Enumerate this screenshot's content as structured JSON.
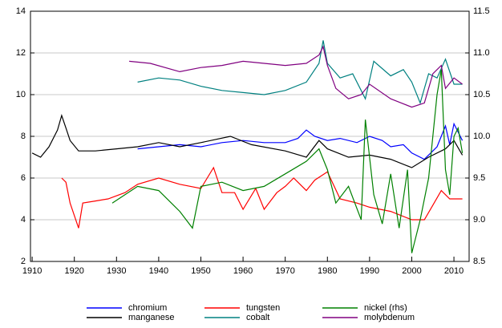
{
  "chart_data": {
    "type": "line",
    "xlim": [
      1909.6,
      2013.6
    ],
    "xticks": [
      1910,
      1920,
      1930,
      1940,
      1950,
      1960,
      1970,
      1980,
      1990,
      2000,
      2010
    ],
    "ylim": [
      2,
      14
    ],
    "yticks": [
      2,
      4,
      6,
      8,
      10,
      12,
      14
    ],
    "y2lim": [
      8.5,
      11.5
    ],
    "y2ticks": [
      8.5,
      {
        "value": 9,
        "label": "9.0"
      },
      9.5,
      {
        "value": 10,
        "label": "10.0"
      },
      10.5,
      {
        "value": 11,
        "label": "11.0"
      },
      11.5
    ],
    "grid": true,
    "legend": "bottom",
    "series": [
      {
        "name": "chromium",
        "color": "#0000ff",
        "x": [
          1935,
          1940,
          1945,
          1950,
          1955,
          1960,
          1965,
          1970,
          1973,
          1975,
          1977,
          1980,
          1983,
          1987,
          1990,
          1993,
          1995,
          1998,
          2000,
          2003,
          2006,
          2008,
          2009,
          2010,
          2012
        ],
        "values": [
          7.4,
          7.5,
          7.6,
          7.5,
          7.7,
          7.8,
          7.7,
          7.7,
          7.9,
          8.3,
          8.0,
          7.8,
          7.9,
          7.7,
          8.0,
          7.8,
          7.5,
          7.6,
          7.2,
          6.9,
          7.5,
          8.5,
          7.6,
          8.6,
          7.8
        ]
      },
      {
        "name": "manganese",
        "color": "#000000",
        "x": [
          1910,
          1912,
          1914,
          1916,
          1917,
          1918,
          1919,
          1921,
          1925,
          1930,
          1935,
          1940,
          1945,
          1950,
          1957,
          1962,
          1970,
          1975,
          1978,
          1980,
          1985,
          1990,
          1995,
          2000,
          2004,
          2008,
          2010,
          2012
        ],
        "values": [
          7.2,
          7.0,
          7.5,
          8.3,
          9.0,
          8.4,
          7.8,
          7.3,
          7.3,
          7.4,
          7.5,
          7.7,
          7.5,
          7.7,
          8.0,
          7.6,
          7.3,
          7.0,
          7.8,
          7.4,
          7.0,
          7.1,
          6.9,
          6.5,
          7.0,
          7.4,
          7.8,
          7.1
        ]
      },
      {
        "name": "tungsten",
        "color": "#ff0000",
        "x": [
          1917,
          1918,
          1919,
          1921,
          1922,
          1925,
          1928,
          1932,
          1935,
          1940,
          1945,
          1950,
          1953,
          1955,
          1958,
          1960,
          1963,
          1965,
          1968,
          1970,
          1972,
          1975,
          1977,
          1980,
          1983,
          1987,
          1990,
          1995,
          2000,
          2003,
          2005,
          2007,
          2009,
          2012
        ],
        "values": [
          6.0,
          5.8,
          4.8,
          3.6,
          4.8,
          4.9,
          5.0,
          5.3,
          5.7,
          6.0,
          5.7,
          5.5,
          6.5,
          5.3,
          5.3,
          4.5,
          5.5,
          4.5,
          5.3,
          5.6,
          6.0,
          5.4,
          5.9,
          6.3,
          5.0,
          4.8,
          4.6,
          4.4,
          4.0,
          4.0,
          4.7,
          5.4,
          5.0,
          5.0
        ]
      },
      {
        "name": "cobalt",
        "color": "#008080",
        "x": [
          1935,
          1940,
          1945,
          1950,
          1955,
          1960,
          1965,
          1970,
          1975,
          1978,
          1979,
          1980,
          1983,
          1986,
          1989,
          1991,
          1995,
          1998,
          2000,
          2002,
          2004,
          2006,
          2008,
          2010,
          2012
        ],
        "values": [
          10.6,
          10.8,
          10.7,
          10.4,
          10.2,
          10.1,
          10.0,
          10.2,
          10.6,
          11.5,
          12.6,
          11.5,
          10.8,
          11.0,
          9.8,
          11.6,
          10.9,
          11.2,
          10.6,
          9.6,
          11.0,
          10.8,
          11.7,
          10.5,
          10.5
        ]
      },
      {
        "name": "nickel (rhs)",
        "color": "#008000",
        "axis": "y2",
        "x": [
          1929,
          1935,
          1940,
          1945,
          1948,
          1950,
          1955,
          1960,
          1965,
          1970,
          1975,
          1978,
          1980,
          1982,
          1985,
          1988,
          1989,
          1991,
          1993,
          1995,
          1997,
          1999,
          2000,
          2002,
          2004,
          2006,
          2007,
          2008,
          2009,
          2010,
          2011,
          2012
        ],
        "values": [
          9.2,
          9.4,
          9.35,
          9.1,
          8.9,
          9.4,
          9.45,
          9.35,
          9.4,
          9.55,
          9.7,
          9.85,
          9.6,
          9.2,
          9.4,
          9.0,
          10.2,
          9.3,
          8.95,
          9.55,
          8.9,
          9.6,
          8.6,
          9.0,
          9.5,
          10.5,
          10.8,
          9.6,
          9.3,
          10.0,
          10.1,
          9.8
        ]
      },
      {
        "name": "molybdenum",
        "color": "#800080",
        "x": [
          1933,
          1938,
          1945,
          1950,
          1955,
          1960,
          1965,
          1970,
          1975,
          1978,
          1979,
          1980,
          1982,
          1985,
          1988,
          1990,
          1995,
          2000,
          2003,
          2005,
          2007,
          2008,
          2010,
          2012
        ],
        "values": [
          11.6,
          11.5,
          11.1,
          11.3,
          11.4,
          11.6,
          11.5,
          11.4,
          11.5,
          11.9,
          12.3,
          11.4,
          10.3,
          9.8,
          10.0,
          10.5,
          9.8,
          9.4,
          9.6,
          11.0,
          11.4,
          10.3,
          10.8,
          10.5
        ]
      }
    ]
  }
}
